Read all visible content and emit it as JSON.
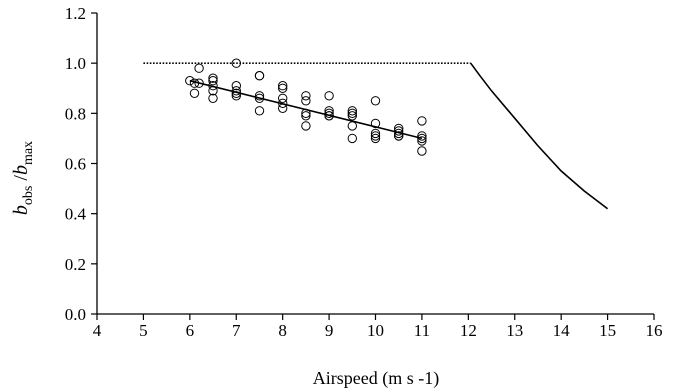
{
  "chart_data": {
    "type": "scatter",
    "title": "",
    "xlabel": "Airspeed (m s -1)",
    "ylabel": {
      "var1": "b",
      "sub1": "obs",
      "sep": " /",
      "var2": "b",
      "sub2": "max"
    },
    "xlim": [
      4,
      16
    ],
    "ylim": [
      0,
      1.2
    ],
    "xticks": [
      4,
      5,
      6,
      7,
      8,
      9,
      10,
      11,
      12,
      13,
      14,
      15,
      16
    ],
    "yticks": [
      "0.0",
      "0.2",
      "0.4",
      "0.6",
      "0.8",
      "1.0",
      "1.2"
    ],
    "grid": false,
    "series": [
      {
        "kind": "scatter",
        "marker": "open-circle",
        "points": [
          [
            6.0,
            0.93
          ],
          [
            6.1,
            0.88
          ],
          [
            6.1,
            0.92
          ],
          [
            6.2,
            0.92
          ],
          [
            6.2,
            0.98
          ],
          [
            6.5,
            0.94
          ],
          [
            6.5,
            0.93
          ],
          [
            6.5,
            0.91
          ],
          [
            6.5,
            0.89
          ],
          [
            6.5,
            0.86
          ],
          [
            7.0,
            1.0
          ],
          [
            7.0,
            0.91
          ],
          [
            7.0,
            0.89
          ],
          [
            7.0,
            0.88
          ],
          [
            7.0,
            0.87
          ],
          [
            7.5,
            0.95
          ],
          [
            7.5,
            0.95
          ],
          [
            7.5,
            0.87
          ],
          [
            7.5,
            0.86
          ],
          [
            7.5,
            0.81
          ],
          [
            8.0,
            0.91
          ],
          [
            8.0,
            0.9
          ],
          [
            8.0,
            0.86
          ],
          [
            8.0,
            0.84
          ],
          [
            8.0,
            0.82
          ],
          [
            8.5,
            0.87
          ],
          [
            8.5,
            0.85
          ],
          [
            8.5,
            0.8
          ],
          [
            8.5,
            0.79
          ],
          [
            8.5,
            0.75
          ],
          [
            9.0,
            0.87
          ],
          [
            9.0,
            0.81
          ],
          [
            9.0,
            0.8
          ],
          [
            9.0,
            0.79
          ],
          [
            9.0,
            0.79
          ],
          [
            9.5,
            0.81
          ],
          [
            9.5,
            0.8
          ],
          [
            9.5,
            0.79
          ],
          [
            9.5,
            0.75
          ],
          [
            9.5,
            0.7
          ],
          [
            10.0,
            0.85
          ],
          [
            10.0,
            0.76
          ],
          [
            10.0,
            0.72
          ],
          [
            10.0,
            0.71
          ],
          [
            10.0,
            0.7
          ],
          [
            10.5,
            0.74
          ],
          [
            10.5,
            0.73
          ],
          [
            10.5,
            0.72
          ],
          [
            10.5,
            0.71
          ],
          [
            10.5,
            0.71
          ],
          [
            11.0,
            0.77
          ],
          [
            11.0,
            0.71
          ],
          [
            11.0,
            0.7
          ],
          [
            11.0,
            0.69
          ],
          [
            11.0,
            0.65
          ]
        ]
      },
      {
        "kind": "line",
        "style": "solid",
        "points": [
          [
            6.0,
            0.93
          ],
          [
            11.0,
            0.7
          ]
        ]
      },
      {
        "kind": "line",
        "style": "dotted",
        "points": [
          [
            5.0,
            1.0
          ],
          [
            12.05,
            1.0
          ]
        ]
      },
      {
        "kind": "line",
        "style": "solid",
        "points": [
          [
            12.05,
            1.0
          ],
          [
            12.25,
            0.95
          ],
          [
            12.5,
            0.89
          ],
          [
            13.0,
            0.78
          ],
          [
            13.5,
            0.67
          ],
          [
            14.0,
            0.57
          ],
          [
            14.5,
            0.49
          ],
          [
            15.0,
            0.42
          ]
        ]
      }
    ]
  }
}
